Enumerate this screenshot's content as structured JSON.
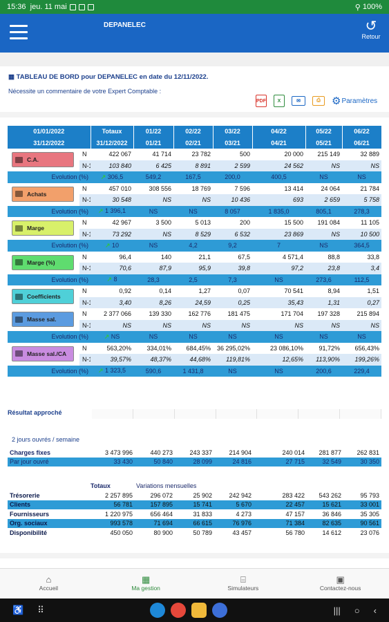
{
  "status": {
    "time": "15:36",
    "date": "jeu. 11 mai",
    "battery": "100%"
  },
  "app": {
    "title": "DEPANELEC",
    "retour": "Retour"
  },
  "header": {
    "title": "TABLEAU DE BORD pour DEPANELEC en date du 12/11/2022.",
    "comment": "Nécessite un commentaire de votre Expert Comptable :",
    "params": "Paramètres"
  },
  "columns": {
    "top": [
      "01/01/2022",
      "Totaux",
      "01/22",
      "02/22",
      "03/22",
      "04/22",
      "05/22",
      "06/22"
    ],
    "bottom": [
      "31/12/2022",
      "31/12/2022",
      "01/21",
      "02/21",
      "03/21",
      "04/21",
      "05/21",
      "06/21"
    ]
  },
  "sections": [
    {
      "label": "C.A.",
      "color": "#e8767f",
      "n": [
        "422 067",
        "41 714",
        "23 782",
        "500",
        "20 000",
        "215 149",
        "32 889"
      ],
      "n1": [
        "103 840",
        "6 425",
        "8 891",
        "2 599",
        "24 562",
        "NS",
        "NS"
      ],
      "ev": [
        "306,5",
        "549,2",
        "167,5",
        "200,0",
        "400,5",
        "NS",
        "NS"
      ]
    },
    {
      "label": "Achats",
      "color": "#f2a06b",
      "n": [
        "457 010",
        "308 556",
        "18 769",
        "7 596",
        "13 414",
        "24 064",
        "21 784"
      ],
      "n1": [
        "30 548",
        "NS",
        "NS",
        "10 436",
        "693",
        "2 659",
        "5 758"
      ],
      "ev": [
        "1 396,1",
        "NS",
        "NS",
        "8 057",
        "1 835,0",
        "805,1",
        "278,3"
      ]
    },
    {
      "label": "Marge",
      "color": "#d8f06a",
      "n": [
        "42 967",
        "3 500",
        "5 013",
        "200",
        "15 500",
        "191 084",
        "11 105"
      ],
      "n1": [
        "73 292",
        "NS",
        "8 529",
        "6 532",
        "23 869",
        "NS",
        "10 500"
      ],
      "ev": [
        "10",
        "NS",
        "4,2",
        "9,2",
        "7",
        "NS",
        "364,5"
      ]
    },
    {
      "label": "Marge (%)",
      "color": "#5fdc6f",
      "n": [
        "96,4",
        "140",
        "21,1",
        "67,5",
        "4 571,4",
        "88,8",
        "33,8"
      ],
      "n1": [
        "70,6",
        "87,9",
        "95,9",
        "39,8",
        "97,2",
        "23,8",
        "3,4"
      ],
      "ev": [
        "8",
        "28,3",
        "2,5",
        "7,3",
        "NS",
        "273,6",
        "112,5"
      ]
    },
    {
      "label": "Coefficients",
      "color": "#4fd0d8",
      "n": [
        "0,92",
        "0,14",
        "1,27",
        "0,07",
        "70 541",
        "8,94",
        "1,51"
      ],
      "n1": [
        "3,40",
        "8,26",
        "24,59",
        "0,25",
        "35,43",
        "1,31",
        "0,27"
      ],
      "ev": []
    },
    {
      "label": "Masse sal.",
      "color": "#5b9be0",
      "n": [
        "2 377 066",
        "139 330",
        "162 776",
        "181 475",
        "171 704",
        "197 328",
        "215 894"
      ],
      "n1": [
        "NS",
        "NS",
        "NS",
        "NS",
        "NS",
        "NS",
        "NS"
      ],
      "ev": [
        "NS",
        "NS",
        "NS",
        "NS",
        "NS",
        "NS",
        "NS"
      ]
    },
    {
      "label": "Masse sal./CA",
      "color": "#c98ce0",
      "n": [
        "563,20%",
        "334,01%",
        "684,45%",
        "36 295,02%",
        "23 086,10%",
        "91,72%",
        "656,43%"
      ],
      "n1": [
        "39,57%",
        "48,37%",
        "44,68%",
        "119,81%",
        "12,65%",
        "113,90%",
        "199,26%"
      ],
      "ev": [
        "1 323,5",
        "590,6",
        "1 431,8",
        "NS",
        "NS",
        "200,6",
        "229,4"
      ]
    }
  ],
  "labels": {
    "n": "N",
    "n1": "N-1",
    "ev": "Evolution (%)"
  },
  "resultat": "Résultat approché",
  "jours": "2 jours ouvrés / semaine",
  "charges": {
    "label": "Charges fixes",
    "values": [
      "3 473 996",
      "440 273",
      "243 337",
      "214 904",
      "240 014",
      "281 877",
      "262 831"
    ]
  },
  "parjour": {
    "label": "Par jour ouvré",
    "values": [
      "33 430",
      "50 840",
      "28 099",
      "24 816",
      "27 715",
      "32 549",
      "30 350"
    ]
  },
  "tresohdr": {
    "totaux": "Totaux",
    "variations": "Variations mensuelles"
  },
  "treso": [
    {
      "label": "Trésorerie",
      "values": [
        "2 257 895",
        "296 072",
        "25 902",
        "242 942",
        "283 422",
        "543 262",
        "95 793"
      ]
    },
    {
      "label": "Clients",
      "values": [
        "56 781",
        "157 895",
        "15 741",
        "5 670",
        "22 457",
        "15 621",
        "33 001"
      ]
    },
    {
      "label": "Fournisseurs",
      "values": [
        "1 220 975",
        "656 464",
        "31 833",
        "4 273",
        "47 157",
        "36 846",
        "35 305"
      ]
    },
    {
      "label": "Org. sociaux",
      "values": [
        "993 578",
        "71 694",
        "66 615",
        "76 976",
        "71 384",
        "82 635",
        "90 561"
      ]
    },
    {
      "label": "Disponibilité",
      "values": [
        "450 050",
        "80 900",
        "50 789",
        "43 457",
        "56 780",
        "14 612",
        "23 076"
      ]
    }
  ],
  "nav": [
    {
      "label": "Accueil",
      "icon": "home-icon"
    },
    {
      "label": "Ma gestion",
      "icon": "calculator-icon"
    },
    {
      "label": "Simulateurs",
      "icon": "bank-icon"
    },
    {
      "label": "Contactez-nous",
      "icon": "contact-card-icon"
    }
  ]
}
